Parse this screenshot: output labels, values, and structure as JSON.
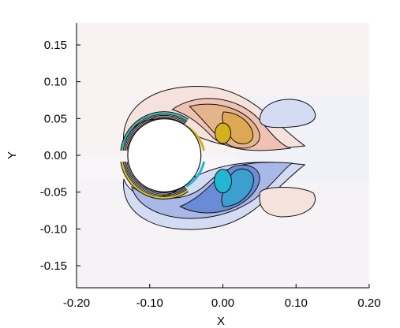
{
  "chart_data": {
    "type": "contour",
    "xlabel": "X",
    "ylabel": "Y",
    "xlim": [
      -0.2,
      0.2
    ],
    "ylim": [
      -0.18,
      0.18
    ],
    "xticks": [
      "-0.20",
      "-0.10",
      "0.00",
      "0.10",
      "0.20"
    ],
    "yticks": [
      "0.15",
      "0.10",
      "0.05",
      "0.00",
      "-0.05",
      "-0.10",
      "-0.15"
    ],
    "cylinder": {
      "center": [
        -0.08,
        0.0
      ],
      "radius": 0.05
    },
    "vortices": [
      {
        "sign": "positive",
        "core": [
          0.0,
          0.03
        ]
      },
      {
        "sign": "negative",
        "core": [
          0.0,
          -0.035
        ]
      },
      {
        "sign": "negative",
        "core": [
          0.085,
          0.055
        ]
      },
      {
        "sign": "positive",
        "core": [
          0.085,
          -0.06
        ]
      }
    ],
    "colors": {
      "positive_levels": [
        "#f6e2dc",
        "#efc2b4",
        "#e6b48a",
        "#dca853",
        "#d6b11e"
      ],
      "negative_levels": [
        "#d4dcf3",
        "#aab8e8",
        "#6b8bd6",
        "#3c9fcf",
        "#21b7d4"
      ],
      "background": "#f8f6f7",
      "contour_line": "#000000"
    },
    "grid": false,
    "legend": "none"
  }
}
